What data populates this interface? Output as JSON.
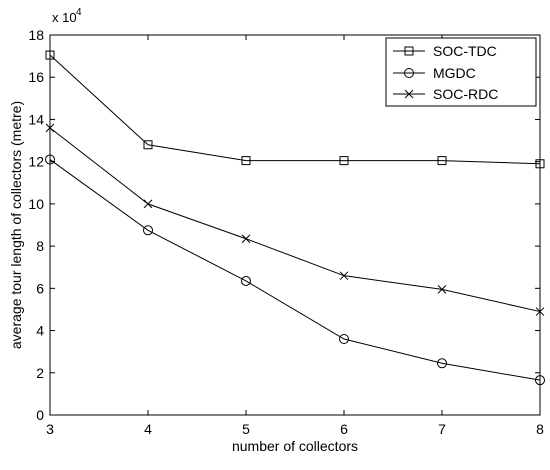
{
  "chart_data": {
    "type": "line",
    "title": "",
    "xlabel": "number of collectors",
    "ylabel": "average tour length of collectors (metre)",
    "y_exponent_label": "x 10",
    "y_exponent_power": "4",
    "xlim": [
      3,
      8
    ],
    "ylim": [
      0,
      18
    ],
    "xticks": [
      3,
      4,
      5,
      6,
      7,
      8
    ],
    "yticks": [
      0,
      2,
      4,
      6,
      8,
      10,
      12,
      14,
      16,
      18
    ],
    "x": [
      3,
      4,
      5,
      6,
      7,
      8
    ],
    "grid": false,
    "legend_position": "top-right",
    "series": [
      {
        "name": "SOC-TDC",
        "marker": "square",
        "color": "#000000",
        "values": [
          17.05,
          12.8,
          12.05,
          12.05,
          12.05,
          11.9
        ]
      },
      {
        "name": "MGDC",
        "marker": "circle",
        "color": "#000000",
        "values": [
          12.1,
          8.75,
          6.35,
          3.6,
          2.45,
          1.65
        ]
      },
      {
        "name": "SOC-RDC",
        "marker": "x",
        "color": "#000000",
        "values": [
          13.6,
          10.0,
          8.35,
          6.6,
          5.95,
          4.9
        ]
      }
    ]
  }
}
